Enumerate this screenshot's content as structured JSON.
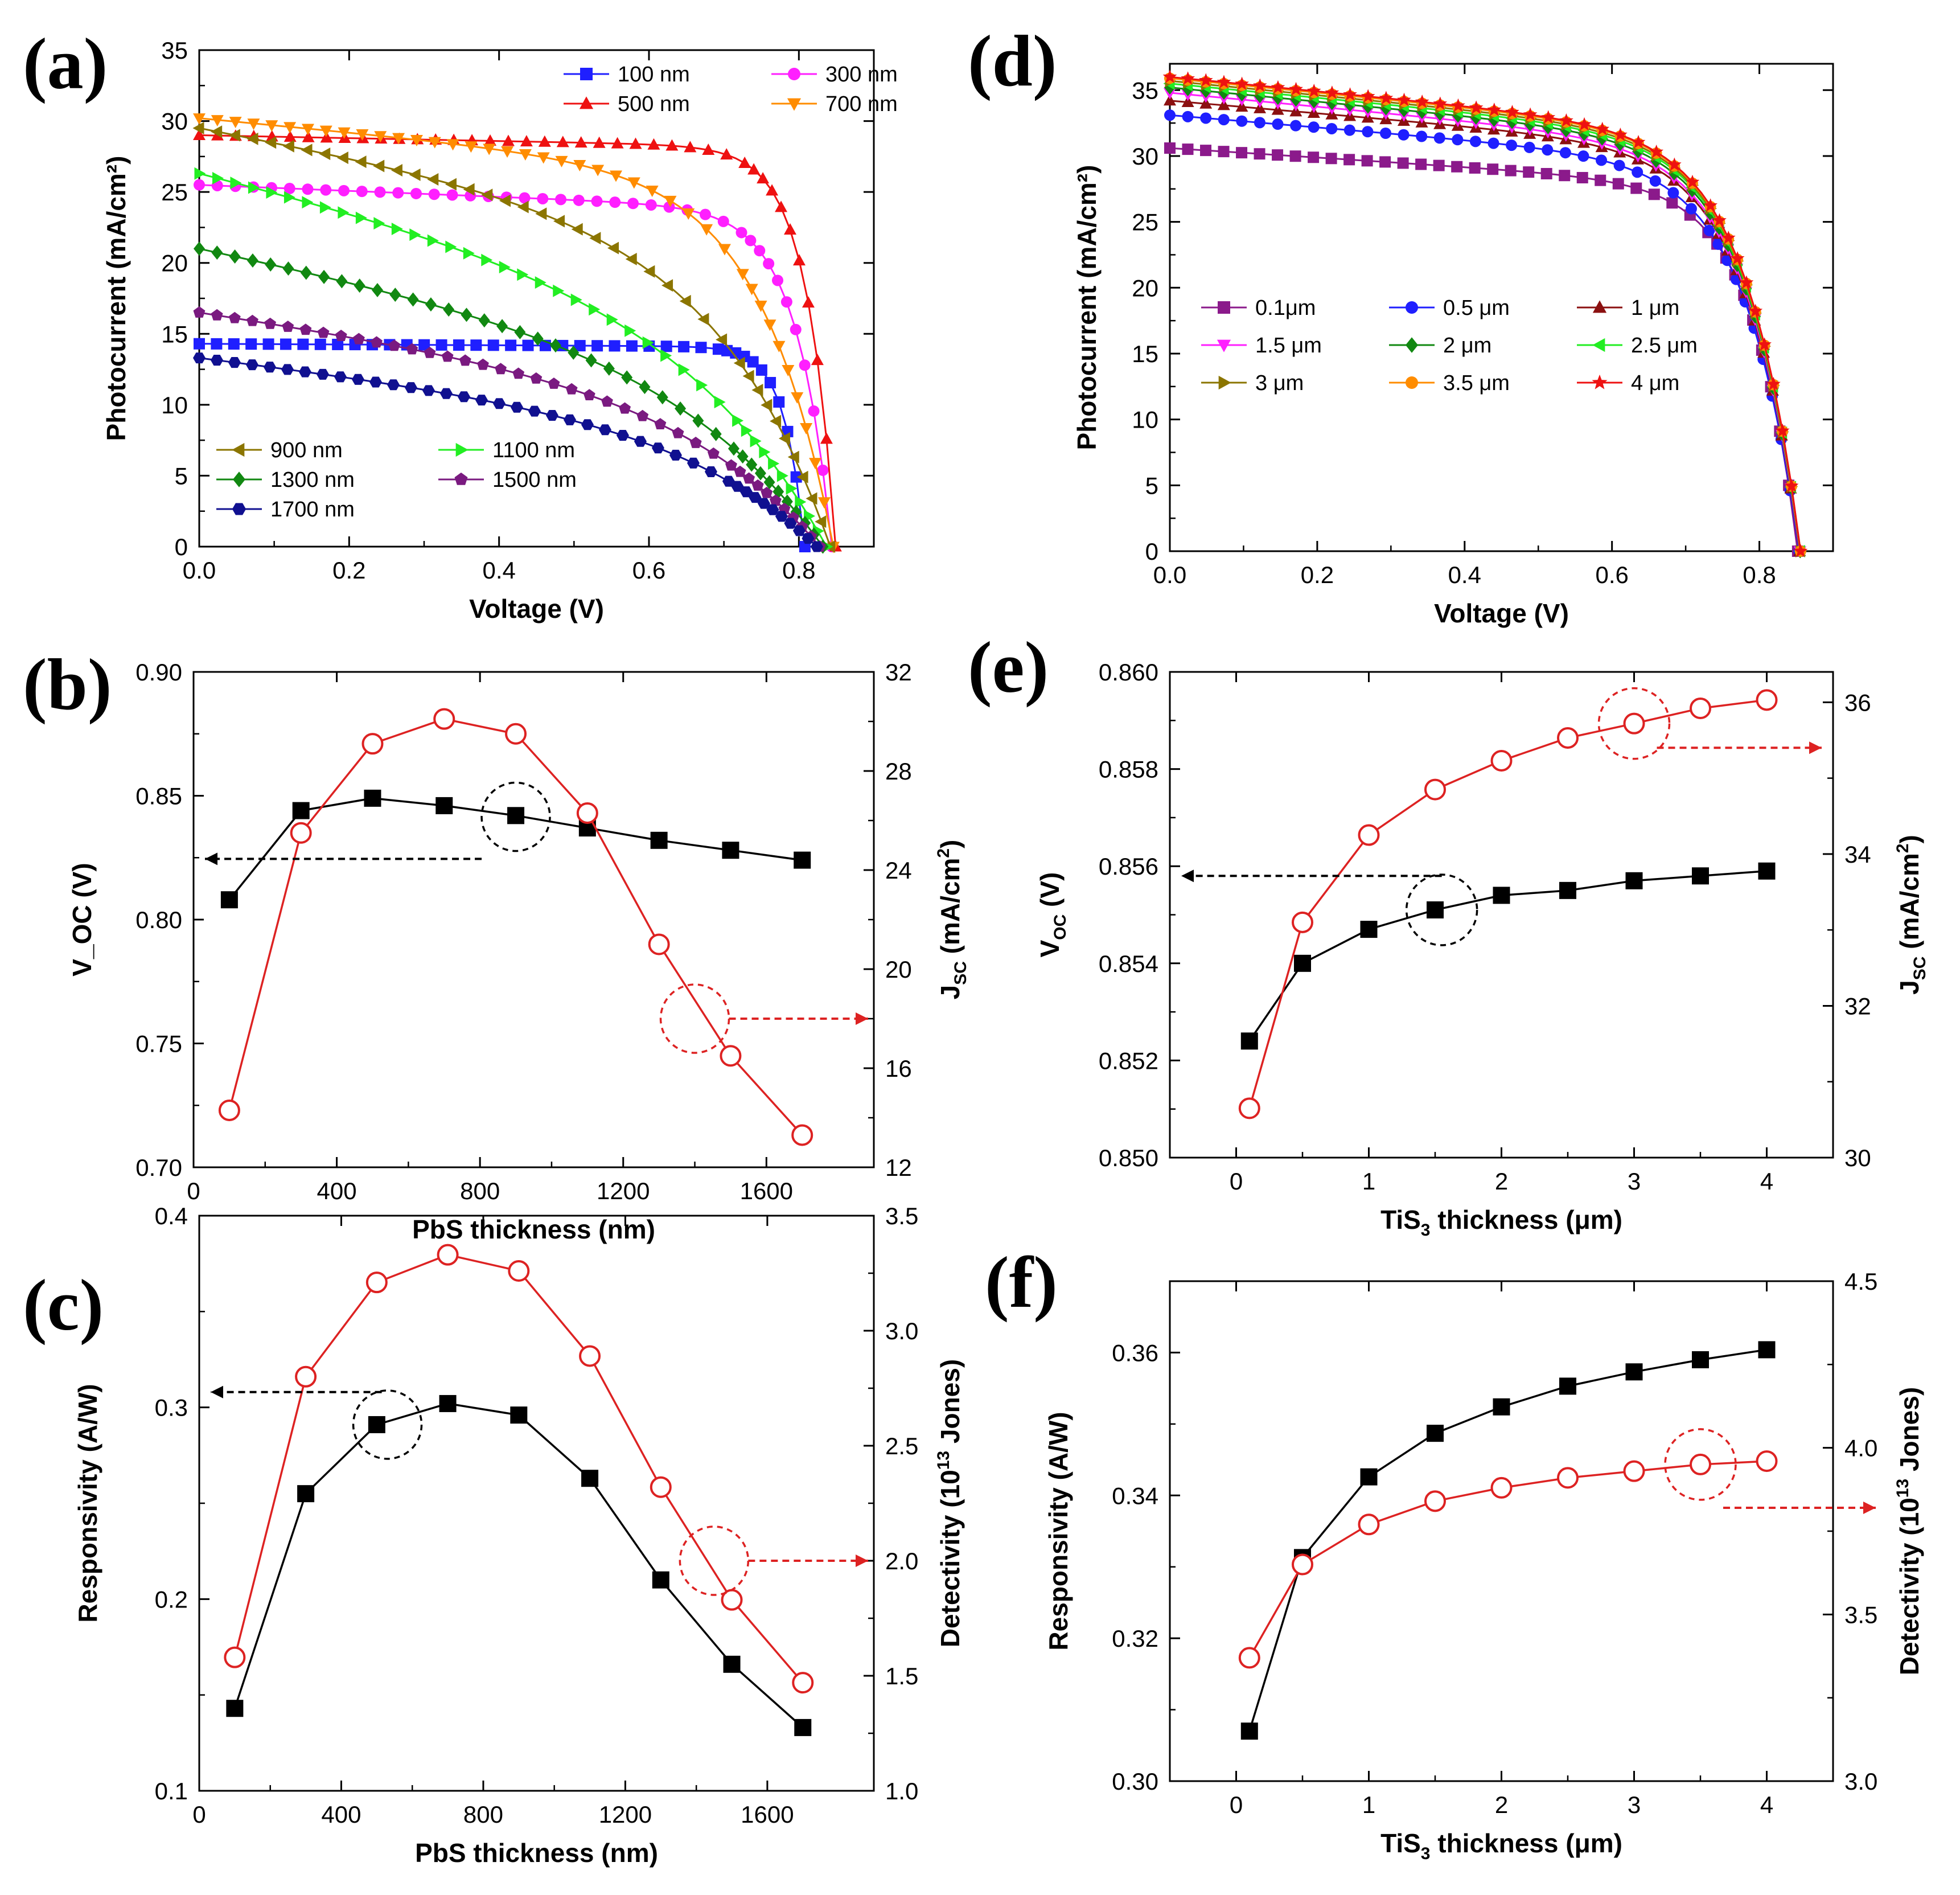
{
  "figure": {
    "description_panels": [
      "a",
      "b",
      "c",
      "d",
      "e",
      "f"
    ]
  },
  "chart_data": [
    {
      "id": "a",
      "panel_label": "(a)",
      "type": "line",
      "xlabel": "Voltage (V)",
      "ylabel": "Photocurrent (mA/cm²)",
      "xlim": [
        0,
        0.9
      ],
      "ylim": [
        0,
        35
      ],
      "xticks": [
        0.0,
        0.2,
        0.4,
        0.6,
        0.8
      ],
      "xtick_labels": [
        "0.0",
        "0.2",
        "0.4",
        "0.6",
        "0.8"
      ],
      "yticks": [
        0,
        5,
        10,
        15,
        20,
        25,
        30,
        35
      ],
      "ytick_labels": [
        "0",
        "5",
        "10",
        "15",
        "20",
        "25",
        "30",
        "35"
      ],
      "series": [
        {
          "name": "100 nm",
          "color": "#1f1fff",
          "marker": "square",
          "jsc": 14.3,
          "voc": 0.808,
          "shape": 0.985,
          "curv": 30
        },
        {
          "name": "300 nm",
          "color": "#ff1fff",
          "marker": "circle",
          "jsc": 25.5,
          "voc": 0.844,
          "shape": 0.93,
          "curv": 18
        },
        {
          "name": "500 nm",
          "color": "#ee1111",
          "marker": "triangle-up",
          "jsc": 29.0,
          "voc": 0.849,
          "shape": 0.97,
          "curv": 22
        },
        {
          "name": "700 nm",
          "color": "#ff8c00",
          "marker": "triangle-down",
          "jsc": 30.2,
          "voc": 0.846,
          "shape": 0.86,
          "curv": 9
        },
        {
          "name": "900 nm",
          "color": "#8b7500",
          "marker": "triangle-left",
          "jsc": 29.5,
          "voc": 0.842,
          "shape": 0.72,
          "curv": 6
        },
        {
          "name": "1100 nm",
          "color": "#22ee22",
          "marker": "triangle-right",
          "jsc": 26.3,
          "voc": 0.837,
          "shape": 0.6,
          "curv": 5
        },
        {
          "name": "1300 nm",
          "color": "#118811",
          "marker": "diamond",
          "jsc": 21.0,
          "voc": 0.832,
          "shape": 0.58,
          "curv": 5
        },
        {
          "name": "1500 nm",
          "color": "#7a1a80",
          "marker": "pentagon",
          "jsc": 16.5,
          "voc": 0.828,
          "shape": 0.62,
          "curv": 5
        },
        {
          "name": "1700 nm",
          "color": "#101090",
          "marker": "hexagon",
          "jsc": 13.3,
          "voc": 0.824,
          "shape": 0.62,
          "curv": 5
        }
      ],
      "legend_top": [
        "100 nm",
        "300 nm",
        "500 nm",
        "700 nm"
      ],
      "legend_bottom": [
        "900 nm",
        "1100 nm",
        "1300 nm",
        "1500 nm",
        "1700 nm"
      ]
    },
    {
      "id": "b",
      "panel_label": "(b)",
      "type": "line",
      "xlabel": "PbS thickness (nm)",
      "ylabel": "V_OC (V)",
      "ylabel_parts": {
        "main": "V",
        "sub": "OC",
        "rest": " (V)"
      },
      "y2label_parts": {
        "main": "J",
        "sub": "SC",
        "rest": " (mA/cm",
        "sup": "2",
        "end": ")"
      },
      "xlim": [
        0,
        1900
      ],
      "ylim": [
        0.7,
        0.9
      ],
      "y2lim": [
        12,
        32
      ],
      "xticks": [
        0,
        400,
        800,
        1200,
        1600
      ],
      "xtick_labels": [
        "0",
        "400",
        "800",
        "1200",
        "1600"
      ],
      "yticks": [
        0.7,
        0.75,
        0.8,
        0.85,
        0.9
      ],
      "ytick_labels": [
        "0.70",
        "0.75",
        "0.80",
        "0.85",
        "0.90"
      ],
      "y2ticks": [
        12,
        16,
        20,
        24,
        28,
        32
      ],
      "y2tick_labels": [
        "12",
        "16",
        "20",
        "24",
        "28",
        "32"
      ],
      "x": [
        100,
        300,
        500,
        700,
        900,
        1100,
        1300,
        1500,
        1700
      ],
      "series": [
        {
          "name": "Voc",
          "axis": "left",
          "color": "#000000",
          "marker": "filled-square",
          "values": [
            0.808,
            0.844,
            0.849,
            0.846,
            0.842,
            0.837,
            0.832,
            0.828,
            0.824
          ]
        },
        {
          "name": "Jsc",
          "axis": "right",
          "color": "#dd2222",
          "marker": "open-circle",
          "values": [
            14.3,
            25.5,
            29.1,
            30.1,
            29.5,
            26.3,
            21.0,
            16.5,
            13.3
          ]
        }
      ]
    },
    {
      "id": "c",
      "panel_label": "(c)",
      "type": "line",
      "xlabel": "PbS thickness (nm)",
      "ylabel": "Responsivity (A/W)",
      "y2label_parts": {
        "main": "Detectivity (10",
        "sup": "13",
        "rest": " Jones)"
      },
      "xlim": [
        0,
        1900
      ],
      "ylim": [
        0.1,
        0.4
      ],
      "y2lim": [
        1.0,
        3.5
      ],
      "xticks": [
        0,
        400,
        800,
        1200,
        1600
      ],
      "xtick_labels": [
        "0",
        "400",
        "800",
        "1200",
        "1600"
      ],
      "yticks": [
        0.1,
        0.2,
        0.3,
        0.4
      ],
      "ytick_labels": [
        "0.1",
        "0.2",
        "0.3",
        "0.4"
      ],
      "y2ticks": [
        1.0,
        1.5,
        2.0,
        2.5,
        3.0,
        3.5
      ],
      "y2tick_labels": [
        "1.0",
        "1.5",
        "2.0",
        "2.5",
        "3.0",
        "3.5"
      ],
      "x": [
        100,
        300,
        500,
        700,
        900,
        1100,
        1300,
        1500,
        1700
      ],
      "series": [
        {
          "name": "Responsivity",
          "axis": "left",
          "color": "#000000",
          "marker": "filled-square",
          "values": [
            0.143,
            0.255,
            0.291,
            0.302,
            0.296,
            0.263,
            0.21,
            0.166,
            0.133
          ]
        },
        {
          "name": "Detectivity",
          "axis": "right",
          "color": "#dd2222",
          "marker": "open-circle",
          "values": [
            1.58,
            2.8,
            3.21,
            3.33,
            3.26,
            2.89,
            2.32,
            1.83,
            1.47
          ]
        }
      ]
    },
    {
      "id": "d",
      "panel_label": "(d)",
      "type": "line",
      "xlabel": "Voltage (V)",
      "ylabel": "Photocurrent (mA/cm²)",
      "xlim": [
        0,
        0.9
      ],
      "ylim": [
        0,
        37
      ],
      "xticks": [
        0.0,
        0.2,
        0.4,
        0.6,
        0.8
      ],
      "xtick_labels": [
        "0.0",
        "0.2",
        "0.4",
        "0.6",
        "0.8"
      ],
      "yticks": [
        0,
        5,
        10,
        15,
        20,
        25,
        30,
        35
      ],
      "ytick_labels": [
        "0",
        "5",
        "10",
        "15",
        "20",
        "25",
        "30",
        "35"
      ],
      "series": [
        {
          "name": "0.1μm",
          "color": "#8b1a8b",
          "marker": "square",
          "jsc": 30.6,
          "voc": 0.852,
          "shape": 0.9,
          "curv": 14
        },
        {
          "name": "0.5 μm",
          "color": "#1f1fff",
          "marker": "circle",
          "jsc": 33.1,
          "voc": 0.854,
          "shape": 0.88,
          "curv": 12
        },
        {
          "name": "1 μm",
          "color": "#8b1010",
          "marker": "triangle-up",
          "jsc": 34.2,
          "voc": 0.8547,
          "shape": 0.88,
          "curv": 12
        },
        {
          "name": "1.5 μm",
          "color": "#ff1fff",
          "marker": "triangle-down",
          "jsc": 34.8,
          "voc": 0.8551,
          "shape": 0.87,
          "curv": 12
        },
        {
          "name": "2 μm",
          "color": "#118811",
          "marker": "diamond",
          "jsc": 35.2,
          "voc": 0.8554,
          "shape": 0.87,
          "curv": 12
        },
        {
          "name": "2.5 μm",
          "color": "#22ee22",
          "marker": "triangle-left",
          "jsc": 35.5,
          "voc": 0.8555,
          "shape": 0.87,
          "curv": 12
        },
        {
          "name": "3 μm",
          "color": "#8b7500",
          "marker": "triangle-right",
          "jsc": 35.7,
          "voc": 0.8557,
          "shape": 0.87,
          "curv": 12
        },
        {
          "name": "3.5 μm",
          "color": "#ff8c00",
          "marker": "circle",
          "jsc": 35.9,
          "voc": 0.8558,
          "shape": 0.87,
          "curv": 12
        },
        {
          "name": "4 μm",
          "color": "#ee1111",
          "marker": "star",
          "jsc": 36.0,
          "voc": 0.8559,
          "shape": 0.87,
          "curv": 12
        }
      ]
    },
    {
      "id": "e",
      "panel_label": "(e)",
      "type": "line",
      "xlabel_parts": {
        "main": "TiS",
        "sub": "3",
        "rest": " thickness (μm)"
      },
      "ylabel_parts": {
        "main": "V",
        "sub": "OC",
        "rest": " (V)"
      },
      "y2label_parts": {
        "main": "J",
        "sub": "SC",
        "rest": " (mA/cm",
        "sup": "2",
        "end": ")"
      },
      "xlim": [
        -0.5,
        4.5
      ],
      "ylim": [
        0.85,
        0.86
      ],
      "y2lim": [
        30,
        36.4
      ],
      "xticks": [
        0,
        1,
        2,
        3,
        4
      ],
      "xtick_labels": [
        "0",
        "1",
        "2",
        "3",
        "4"
      ],
      "yticks": [
        0.85,
        0.852,
        0.854,
        0.856,
        0.858,
        0.86
      ],
      "ytick_labels": [
        "0.850",
        "0.852",
        "0.854",
        "0.856",
        "0.858",
        "0.860"
      ],
      "y2ticks": [
        30,
        32,
        34,
        36
      ],
      "y2tick_labels": [
        "30",
        "32",
        "34",
        "36"
      ],
      "x": [
        0.1,
        0.5,
        1.0,
        1.5,
        2.0,
        2.5,
        3.0,
        3.5,
        4.0
      ],
      "series": [
        {
          "name": "Voc",
          "axis": "left",
          "color": "#000000",
          "marker": "filled-square",
          "values": [
            0.8524,
            0.854,
            0.8547,
            0.8551,
            0.8554,
            0.8555,
            0.8557,
            0.8558,
            0.8559
          ]
        },
        {
          "name": "Jsc",
          "axis": "right",
          "color": "#dd2222",
          "marker": "open-circle",
          "values": [
            30.65,
            33.1,
            34.25,
            34.85,
            35.23,
            35.53,
            35.72,
            35.92,
            36.03
          ]
        }
      ]
    },
    {
      "id": "f",
      "panel_label": "(f)",
      "type": "line",
      "xlabel_parts": {
        "main": "TiS",
        "sub": "3",
        "rest": " thickness (μm)"
      },
      "ylabel": "Responsivity (A/W)",
      "y2label_parts": {
        "main": "Detectivity (10",
        "sup": "13",
        "rest": " Jones)"
      },
      "xlim": [
        -0.5,
        4.5
      ],
      "ylim": [
        0.3,
        0.37
      ],
      "y2lim": [
        3.0,
        4.5
      ],
      "xticks": [
        0,
        1,
        2,
        3,
        4
      ],
      "xtick_labels": [
        "0",
        "1",
        "2",
        "3",
        "4"
      ],
      "yticks": [
        0.3,
        0.32,
        0.34,
        0.36
      ],
      "ytick_labels": [
        "0.30",
        "0.32",
        "0.34",
        "0.36"
      ],
      "y2ticks": [
        3.0,
        3.5,
        4.0,
        4.5
      ],
      "y2tick_labels": [
        "3.0",
        "3.5",
        "4.0",
        "4.5"
      ],
      "x": [
        0.1,
        0.5,
        1.0,
        1.5,
        2.0,
        2.5,
        3.0,
        3.5,
        4.0
      ],
      "series": [
        {
          "name": "Responsivity",
          "axis": "left",
          "color": "#000000",
          "marker": "filled-square",
          "values": [
            0.307,
            0.3313,
            0.3426,
            0.3487,
            0.3524,
            0.3553,
            0.3573,
            0.359,
            0.3604
          ]
        },
        {
          "name": "Detectivity",
          "axis": "right",
          "color": "#dd2222",
          "marker": "open-circle",
          "values": [
            3.37,
            3.65,
            3.77,
            3.84,
            3.88,
            3.91,
            3.93,
            3.95,
            3.96
          ]
        }
      ]
    }
  ]
}
